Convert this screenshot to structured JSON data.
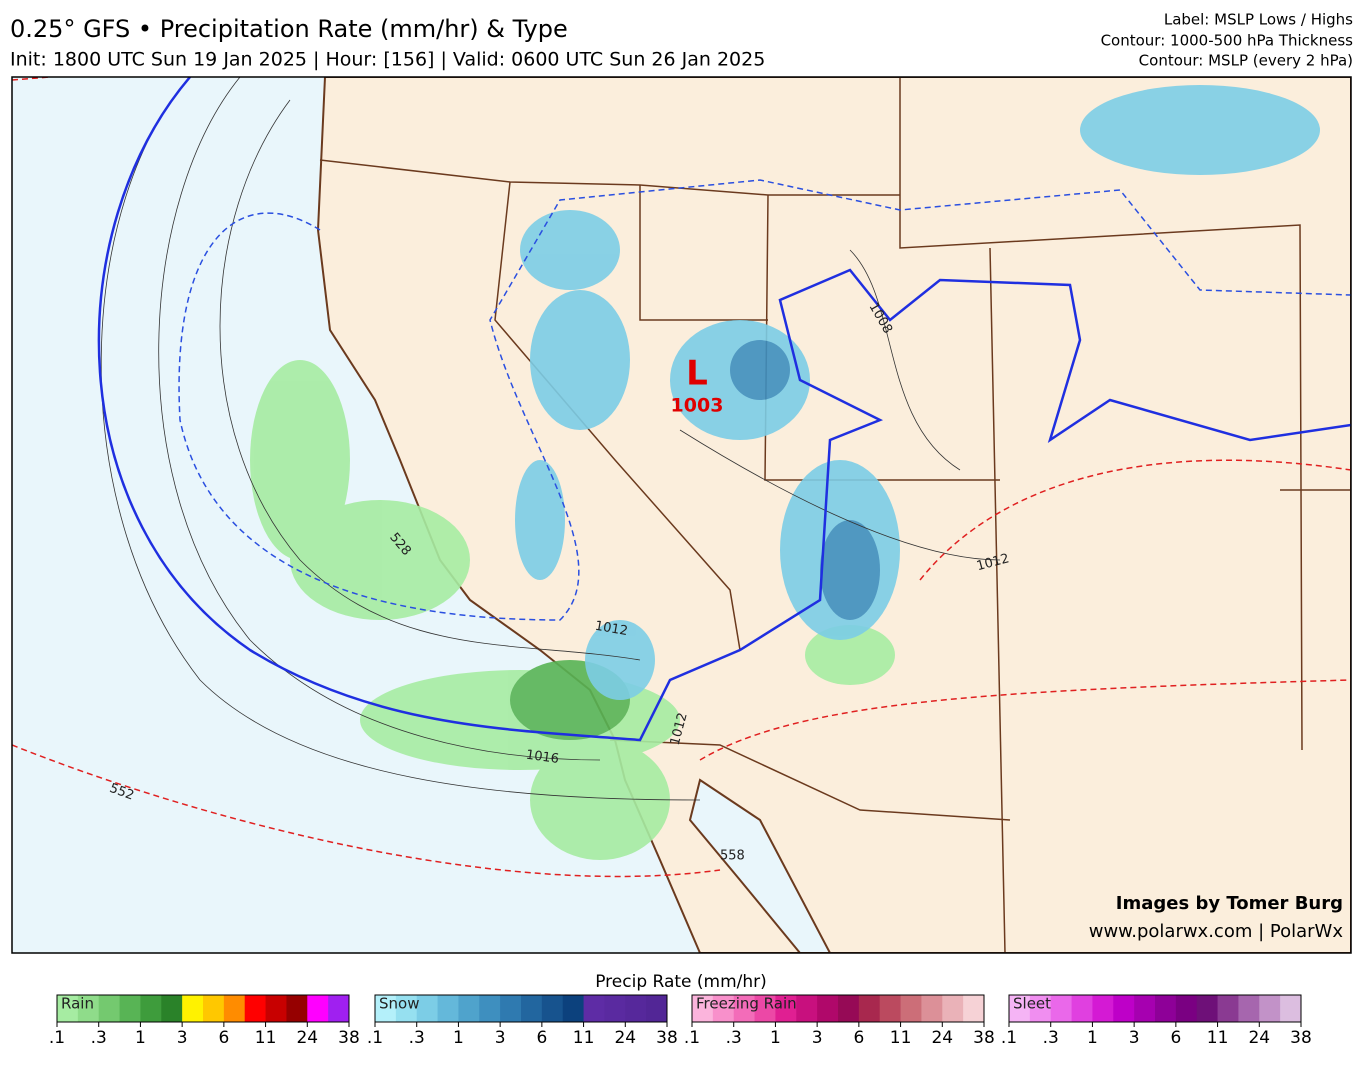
{
  "header": {
    "title": "0.25° GFS • Precipitation Rate (mm/hr) & Type",
    "subtitle": "Init: 1800 UTC Sun 19 Jan 2025 | Hour: [156] | Valid: 0600 UTC Sun 26 Jan 2025",
    "info": [
      "Label: MSLP Lows / Highs",
      "Contour: 1000-500 hPa Thickness",
      "Contour: MSLP (every 2 hPa)"
    ]
  },
  "map": {
    "low_letter": "L",
    "low_value": "1003",
    "contour_labels": [
      "1008",
      "1012",
      "1012",
      "1016",
      "1012",
      "528",
      "552",
      "558"
    ],
    "credit": [
      "Images by Tomer Burg",
      "www.polarwx.com | PolarWx"
    ]
  },
  "legend": {
    "title": "Precip Rate (mm/hr)",
    "ticks": [
      ".1",
      ".3",
      "1",
      "3",
      "6",
      "11",
      "24",
      "38"
    ],
    "scales": [
      {
        "name": "Rain",
        "colors": [
          "#a6eca2",
          "#8fdc8a",
          "#74c96f",
          "#58b455",
          "#3e9c3c",
          "#2a8229",
          "#fff200",
          "#ffc800",
          "#ff8c00",
          "#ff0000",
          "#c80000",
          "#960000",
          "#ff00ff",
          "#a020f0"
        ]
      },
      {
        "name": "Snow",
        "colors": [
          "#b4f0fa",
          "#96e0f0",
          "#7ccde6",
          "#64b8da",
          "#4fa3cc",
          "#3e8fbf",
          "#2f7ab0",
          "#22669f",
          "#17538e",
          "#0c417d",
          "#5e2ca5",
          "#5a2aa0",
          "#56289b",
          "#522696"
        ]
      },
      {
        "name": "Freezing Rain",
        "colors": [
          "#fbb4dc",
          "#f890cb",
          "#f36cb9",
          "#ec48a6",
          "#e01f92",
          "#c8107e",
          "#b0086a",
          "#960a56",
          "#a8284e",
          "#bb4a5f",
          "#cc6e78",
          "#dc9098",
          "#eab2b8",
          "#f6d2d6"
        ]
      },
      {
        "name": "Sleet",
        "colors": [
          "#f5b4f5",
          "#f08ef0",
          "#ea68ea",
          "#e040e0",
          "#d41ad4",
          "#be00c8",
          "#a600b0",
          "#8e0098",
          "#7a0082",
          "#6e1078",
          "#8a3a92",
          "#a666ae",
          "#c292c8",
          "#dcbee0"
        ]
      }
    ]
  }
}
